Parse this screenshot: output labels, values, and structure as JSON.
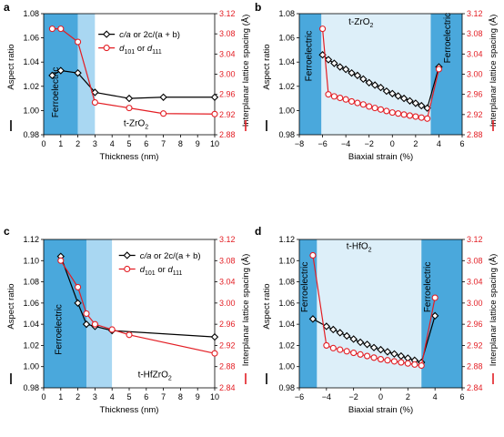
{
  "chart_data": [
    {
      "panel": "a",
      "type": "line",
      "xlabel": "Thickness (nm)",
      "ylabel_left": "Aspect ratio",
      "ylabel_right": "Interplanar lattice spacing (Å)",
      "xlim": [
        0,
        10
      ],
      "x_ticks": [
        "0",
        "1",
        "2",
        "3",
        "4",
        "5",
        "6",
        "7",
        "8",
        "9",
        "10"
      ],
      "ylim_left": [
        0.98,
        1.08
      ],
      "y_ticks_left": [
        "0.98",
        "1.00",
        "1.02",
        "1.04",
        "1.06",
        "1.08"
      ],
      "ylim_right": [
        2.88,
        3.12
      ],
      "y_ticks_right": [
        "2.88",
        "2.92",
        "2.96",
        "3.00",
        "3.04",
        "3.08",
        "3.12"
      ],
      "regions": [
        {
          "x0": 0,
          "x1": 2.0,
          "color": "#4aa8dc",
          "label": "Ferroelectric"
        },
        {
          "x0": 2.0,
          "x1": 3.0,
          "color": "#a9d7f2"
        },
        {
          "x0": 3.0,
          "x1": 10,
          "color": "#ffffff"
        }
      ],
      "region_texts": [
        {
          "text": "Ferroelectric",
          "x": 0.85,
          "y": 1.015,
          "rotate": -90
        }
      ],
      "annotation": {
        "text": "t-ZrO",
        "sub": "2",
        "x": 5.4,
        "y": 0.987
      },
      "legend": {
        "x": 3.2,
        "y": 1.063
      },
      "series": [
        {
          "name_main": "c/a",
          "name_rest": " or 2c/(a + b)",
          "axis": "left",
          "color": "#000000",
          "marker": "diamond",
          "x": [
            0.5,
            1.0,
            2.0,
            3.0,
            5.0,
            7.0,
            10.0
          ],
          "y": [
            1.029,
            1.033,
            1.031,
            1.015,
            1.01,
            1.011,
            1.011
          ]
        },
        {
          "name_main": "d",
          "name_sub1": "101",
          "name_mid": " or d",
          "name_sub2": "111",
          "axis": "right",
          "color": "#e31e24",
          "marker": "circle",
          "x": [
            0.5,
            1.0,
            2.0,
            3.0,
            5.0,
            7.0,
            10.0
          ],
          "y": [
            3.09,
            3.09,
            3.064,
            2.944,
            2.933,
            2.922,
            2.921
          ]
        }
      ]
    },
    {
      "panel": "b",
      "type": "line",
      "xlabel": "Biaxial strain (%)",
      "ylabel_left": "Aspect ratio",
      "ylabel_right": "Interplanar lattice spacing (Å)",
      "xlim": [
        -8,
        6
      ],
      "x_ticks": [
        "−8",
        "−6",
        "−4",
        "−2",
        "0",
        "2",
        "4",
        "6"
      ],
      "ylim_left": [
        0.98,
        1.08
      ],
      "y_ticks_left": [
        "0.98",
        "1.00",
        "1.02",
        "1.04",
        "1.06",
        "1.08"
      ],
      "ylim_right": [
        2.88,
        3.12
      ],
      "y_ticks_right": [
        "2.88",
        "2.92",
        "2.96",
        "3.00",
        "3.04",
        "3.08",
        "3.12"
      ],
      "regions": [
        {
          "x0": -8,
          "x1": -6.1,
          "color": "#4aa8dc",
          "label": "Ferroelectric"
        },
        {
          "x0": -6.1,
          "x1": 3.3,
          "color": "#ddeff9"
        },
        {
          "x0": 3.3,
          "x1": 6,
          "color": "#4aa8dc",
          "label": "Ferroelectric"
        }
      ],
      "region_texts": [
        {
          "text": "Ferroelectric",
          "x": -6.95,
          "y": 1.045,
          "rotate": -90
        },
        {
          "text": "Ferroelectric",
          "x": 5.0,
          "y": 1.06,
          "rotate": -90
        }
      ],
      "annotation": {
        "text": "t-ZrO",
        "sub": "2",
        "x": -2.7,
        "y": 1.071
      },
      "series": [
        {
          "name": "",
          "axis": "left",
          "color": "#000000",
          "marker": "diamond",
          "x": [
            -6.0,
            -5.5,
            -5.0,
            -4.5,
            -4.0,
            -3.5,
            -3.0,
            -2.5,
            -2.0,
            -1.5,
            -1.0,
            -0.5,
            0.0,
            0.5,
            1.0,
            1.5,
            2.0,
            2.5,
            3.0,
            4.0
          ],
          "y": [
            1.046,
            1.042,
            1.039,
            1.036,
            1.034,
            1.031,
            1.029,
            1.026,
            1.023,
            1.021,
            1.019,
            1.016,
            1.014,
            1.012,
            1.01,
            1.008,
            1.006,
            1.004,
            1.002,
            1.036
          ]
        },
        {
          "name": "",
          "axis": "right",
          "color": "#e31e24",
          "marker": "circle",
          "x": [
            -6.0,
            -5.5,
            -5.0,
            -4.5,
            -4.0,
            -3.5,
            -3.0,
            -2.5,
            -2.0,
            -1.5,
            -1.0,
            -0.5,
            0.0,
            0.5,
            1.0,
            1.5,
            2.0,
            2.5,
            3.0,
            4.0
          ],
          "y": [
            3.09,
            2.96,
            2.956,
            2.953,
            2.95,
            2.946,
            2.943,
            2.94,
            2.936,
            2.933,
            2.93,
            2.927,
            2.924,
            2.922,
            2.92,
            2.918,
            2.916,
            2.914,
            2.912,
            3.01
          ]
        }
      ]
    },
    {
      "panel": "c",
      "type": "line",
      "xlabel": "Thickness (nm)",
      "ylabel_left": "Aspect ratio",
      "ylabel_right": "Interplanar lattice spacing (Å)",
      "xlim": [
        0,
        10
      ],
      "x_ticks": [
        "0",
        "1",
        "2",
        "3",
        "4",
        "5",
        "6",
        "7",
        "8",
        "9",
        "10"
      ],
      "ylim_left": [
        0.98,
        1.12
      ],
      "y_ticks_left": [
        "0.98",
        "1.00",
        "1.02",
        "1.04",
        "1.06",
        "1.08",
        "1.10",
        "1.12"
      ],
      "ylim_right": [
        2.84,
        3.12
      ],
      "y_ticks_right": [
        "2.84",
        "2.88",
        "2.92",
        "2.96",
        "3.00",
        "3.04",
        "3.08",
        "3.12"
      ],
      "regions": [
        {
          "x0": 0,
          "x1": 2.5,
          "color": "#4aa8dc",
          "label": "Ferroelectric"
        },
        {
          "x0": 2.5,
          "x1": 4.0,
          "color": "#a9d7f2"
        },
        {
          "x0": 4.0,
          "x1": 10,
          "color": "#ffffff"
        }
      ],
      "region_texts": [
        {
          "text": "Ferroelectric",
          "x": 1.05,
          "y": 1.035,
          "rotate": -90
        }
      ],
      "annotation": {
        "text": "t-HfZrO",
        "sub": "2",
        "x": 6.5,
        "y": 0.99
      },
      "legend": {
        "x": 4.4,
        "y": 1.105
      },
      "series": [
        {
          "name_main": "c/a",
          "name_rest": " or 2c/(a + b)",
          "axis": "left",
          "color": "#000000",
          "marker": "diamond",
          "x": [
            1.0,
            2.0,
            2.5,
            3.0,
            4.0,
            10.0
          ],
          "y": [
            1.104,
            1.06,
            1.04,
            1.038,
            1.034,
            1.028
          ]
        },
        {
          "name_main": "d",
          "name_sub1": "101",
          "name_mid": " or d",
          "name_sub2": "111",
          "axis": "right",
          "color": "#e31e24",
          "marker": "circle",
          "x": [
            1.0,
            2.0,
            2.5,
            3.0,
            4.0,
            5.0,
            10.0
          ],
          "y": [
            3.08,
            3.03,
            2.98,
            2.96,
            2.95,
            2.94,
            2.905
          ]
        }
      ]
    },
    {
      "panel": "d",
      "type": "line",
      "xlabel": "Biaxial strain (%)",
      "ylabel_left": "Aspect ratio",
      "ylabel_right": "Interplanar lattice spacing (Å)",
      "xlim": [
        -6,
        6
      ],
      "x_ticks": [
        "−6",
        "−4",
        "−2",
        "0",
        "2",
        "4",
        "6"
      ],
      "ylim_left": [
        0.98,
        1.12
      ],
      "y_ticks_left": [
        "0.98",
        "1.00",
        "1.02",
        "1.04",
        "1.06",
        "1.08",
        "1.10",
        "1.12"
      ],
      "ylim_right": [
        2.84,
        3.12
      ],
      "y_ticks_right": [
        "2.84",
        "2.88",
        "2.92",
        "2.96",
        "3.00",
        "3.04",
        "3.08",
        "3.12"
      ],
      "regions": [
        {
          "x0": -6,
          "x1": -4.7,
          "color": "#4aa8dc",
          "label": "Ferroelectric"
        },
        {
          "x0": -4.7,
          "x1": 3.0,
          "color": "#ddeff9"
        },
        {
          "x0": 3.0,
          "x1": 6,
          "color": "#4aa8dc",
          "label": "Ferroelectric"
        }
      ],
      "region_texts": [
        {
          "text": "Ferroelectric",
          "x": -5.4,
          "y": 1.075,
          "rotate": -90
        },
        {
          "text": "Ferroelectric",
          "x": 3.65,
          "y": 1.075,
          "rotate": -90
        }
      ],
      "annotation": {
        "text": "t-HfO",
        "sub": "2",
        "x": -1.6,
        "y": 1.111
      },
      "series": [
        {
          "name": "",
          "axis": "left",
          "color": "#000000",
          "marker": "diamond",
          "x": [
            -5.0,
            -4.0,
            -3.5,
            -3.0,
            -2.5,
            -2.0,
            -1.5,
            -1.0,
            -0.5,
            0.0,
            0.5,
            1.0,
            1.5,
            2.0,
            2.5,
            3.0,
            4.0
          ],
          "y": [
            1.045,
            1.038,
            1.035,
            1.032,
            1.029,
            1.026,
            1.023,
            1.021,
            1.018,
            1.016,
            1.014,
            1.012,
            1.01,
            1.008,
            1.006,
            1.004,
            1.048
          ]
        },
        {
          "name": "",
          "axis": "right",
          "color": "#e31e24",
          "marker": "circle",
          "x": [
            -5.0,
            -4.0,
            -3.5,
            -3.0,
            -2.5,
            -2.0,
            -1.5,
            -1.0,
            -0.5,
            0.0,
            0.5,
            1.0,
            1.5,
            2.0,
            2.5,
            3.0,
            4.0
          ],
          "y": [
            3.09,
            2.92,
            2.915,
            2.912,
            2.909,
            2.906,
            2.903,
            2.9,
            2.897,
            2.894,
            2.892,
            2.89,
            2.888,
            2.886,
            2.884,
            2.882,
            3.01
          ]
        }
      ]
    }
  ]
}
